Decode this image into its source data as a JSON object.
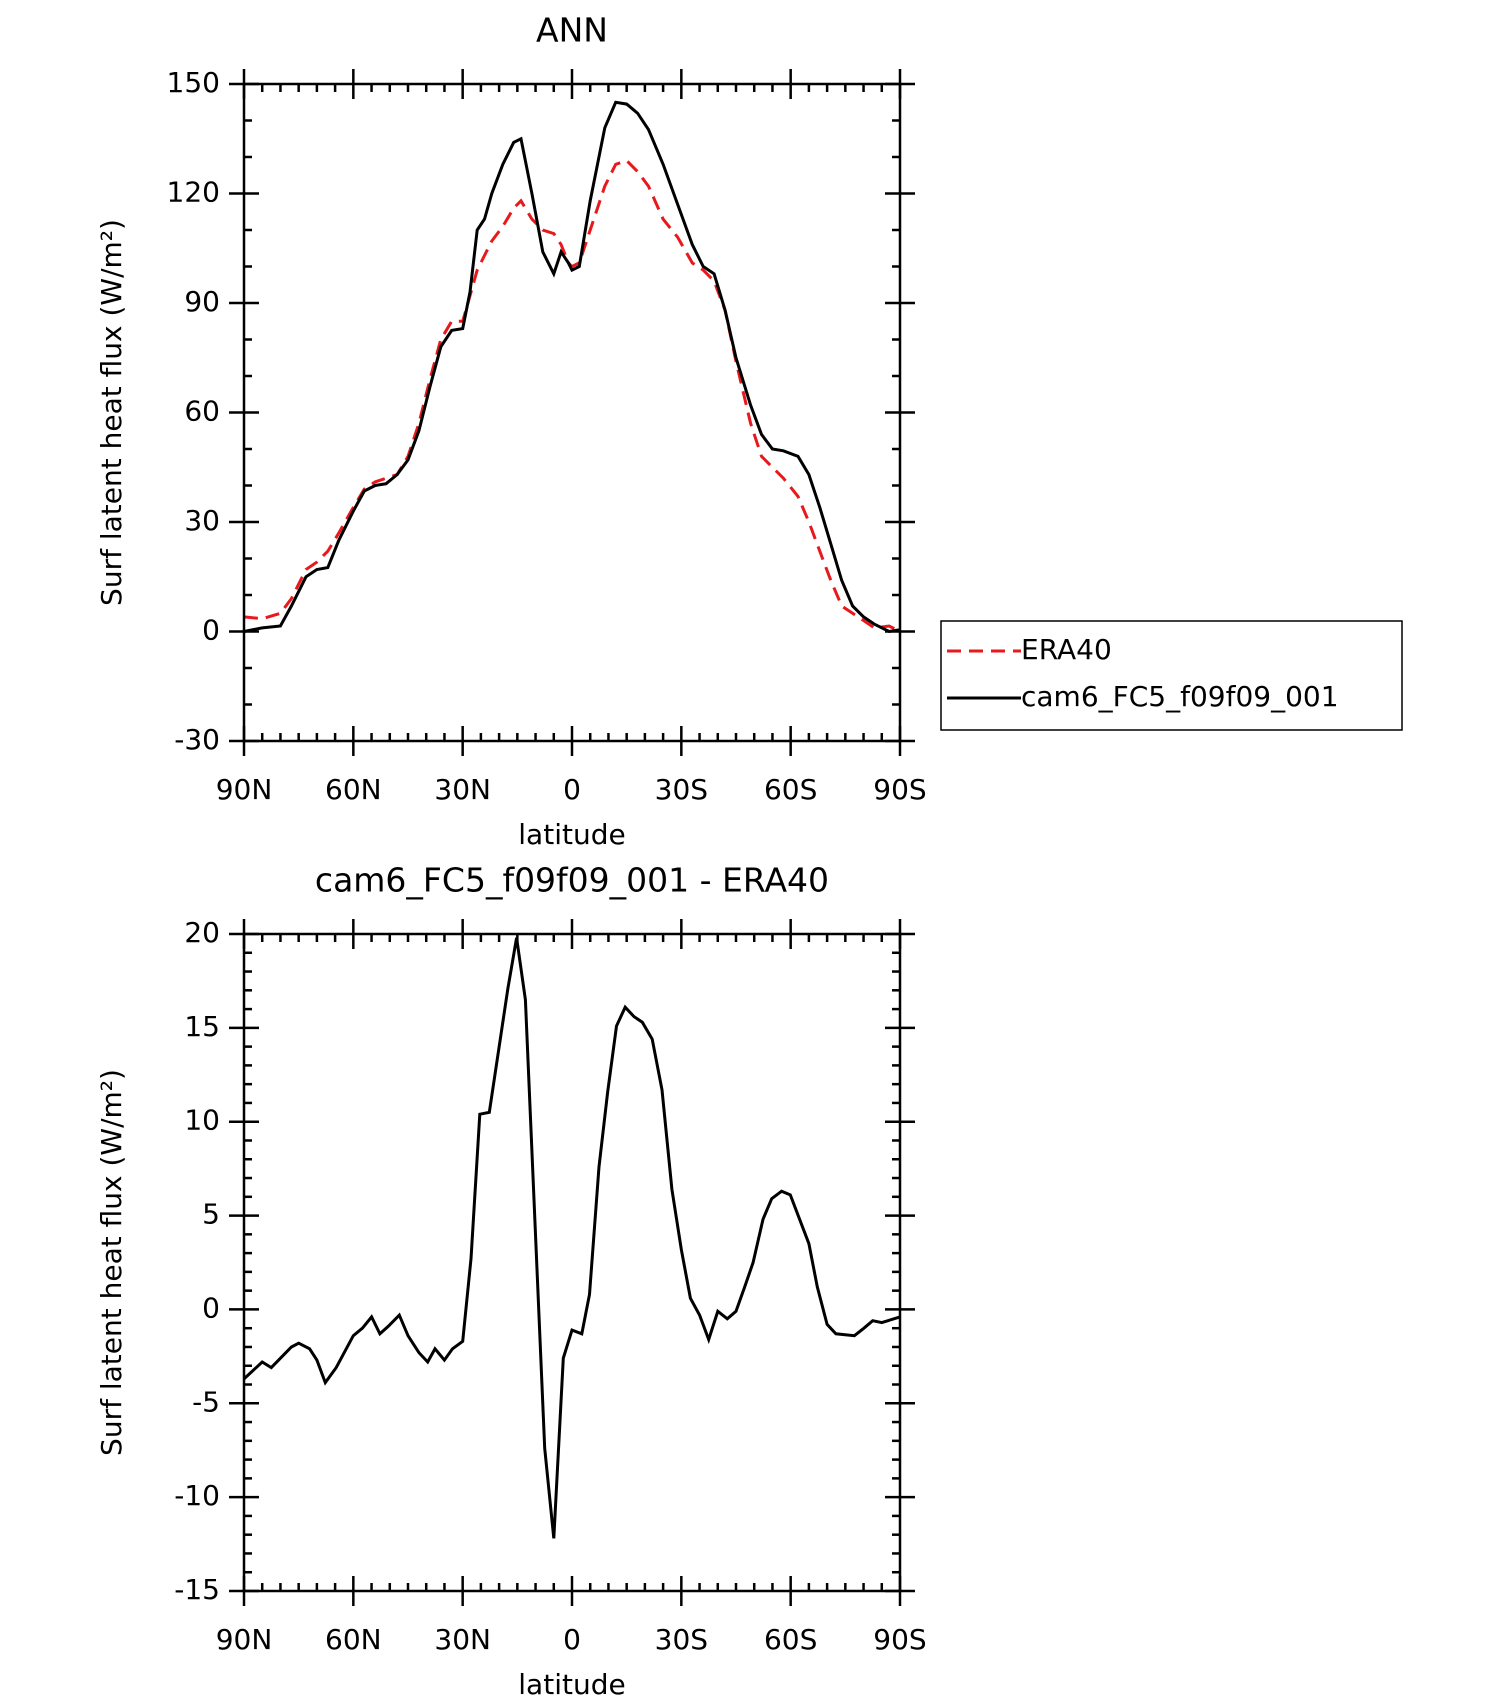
{
  "chart_data": [
    {
      "type": "line",
      "title": "ANN",
      "xlabel": "latitude",
      "ylabel": "Surf latent heat flux (W/m²)",
      "xlim": [
        90,
        -90
      ],
      "ylim": [
        -30,
        150
      ],
      "xticks": [
        {
          "value": 90,
          "label": "90N"
        },
        {
          "value": 60,
          "label": "60N"
        },
        {
          "value": 30,
          "label": "30N"
        },
        0,
        {
          "value": -30,
          "label": "30S"
        },
        {
          "value": -60,
          "label": "60S"
        },
        {
          "value": -90,
          "label": "90S"
        }
      ],
      "yticks": [
        -30,
        0,
        30,
        60,
        90,
        120,
        150
      ],
      "legend": "right",
      "x": [
        90,
        85,
        80,
        77,
        73,
        70,
        67,
        64,
        60,
        57,
        54,
        51,
        48,
        45,
        42,
        39,
        36,
        33,
        30,
        28,
        26,
        24,
        22,
        19,
        16,
        14,
        11,
        8,
        5,
        3,
        1,
        0,
        -2,
        -5,
        -9,
        -12,
        -15,
        -18,
        -21,
        -25,
        -29,
        -33,
        -36,
        -39,
        -42,
        -45,
        -49,
        -52,
        -55,
        -58,
        -62,
        -65,
        -68,
        -71,
        -74,
        -77,
        -80,
        -83,
        -87,
        -90
      ],
      "series": [
        {
          "name": "ERA40",
          "color": "#e8191c",
          "linestyle": "dashed",
          "values": [
            4,
            3.5,
            5,
            9,
            17,
            19,
            22,
            27,
            34,
            39,
            41,
            42,
            43,
            48,
            57,
            69,
            80,
            85,
            85,
            92,
            99,
            103,
            107,
            111,
            116,
            118,
            113,
            110,
            109,
            106,
            101,
            100,
            101,
            110,
            122,
            128,
            129,
            126,
            122,
            113,
            108,
            101,
            99,
            96,
            88,
            74,
            57,
            48,
            45,
            42,
            37,
            30,
            22,
            14,
            7,
            5,
            3,
            1,
            1.5,
            0
          ]
        },
        {
          "name": "cam6_FC5_f09f09_001",
          "color": "#000000",
          "linestyle": "solid",
          "values": [
            0,
            1,
            1.5,
            7,
            15,
            17,
            17.5,
            25,
            33,
            38.5,
            40,
            40.5,
            43,
            47,
            55,
            67,
            78,
            82.5,
            83,
            93,
            110,
            113,
            120,
            128,
            134,
            135,
            120,
            104,
            98,
            104,
            101,
            99,
            100,
            118,
            138,
            145,
            144.5,
            142,
            137.5,
            128,
            117,
            106,
            100,
            98,
            88,
            75,
            62,
            54,
            50,
            49.5,
            48,
            43,
            34,
            24,
            14,
            7,
            4,
            2,
            0,
            0.5
          ]
        }
      ]
    },
    {
      "type": "line",
      "title": "cam6_FC5_f09f09_001 - ERA40",
      "xlabel": "latitude",
      "ylabel": "Surf latent heat flux (W/m²)",
      "xlim": [
        90,
        -90
      ],
      "ylim": [
        -15,
        20
      ],
      "xticks": [
        {
          "value": 90,
          "label": "90N"
        },
        {
          "value": 60,
          "label": "60N"
        },
        {
          "value": 30,
          "label": "30N"
        },
        0,
        {
          "value": -30,
          "label": "30S"
        },
        {
          "value": -60,
          "label": "60S"
        },
        {
          "value": -90,
          "label": "90S"
        }
      ],
      "yticks": [
        -15,
        -10,
        -5,
        0,
        5,
        10,
        15,
        20
      ],
      "x": [
        90,
        85,
        82.5,
        77,
        75,
        72,
        70,
        67.7,
        64.7,
        60,
        57.5,
        55,
        52.7,
        50.4,
        47.4,
        45,
        42,
        39.6,
        37.6,
        35,
        32.8,
        30,
        27.7,
        25.3,
        22.7,
        17.6,
        15.2,
        12.8,
        7.5,
        5,
        2.4,
        0,
        -2.7,
        -4.8,
        -7.4,
        -9.8,
        -12.2,
        -14.6,
        -17,
        -19.3,
        -22,
        -24.7,
        -27.4,
        -30,
        -32.5,
        -35,
        -37.5,
        -40,
        -42.6,
        -45,
        -47.4,
        -49.7,
        -52.4,
        -54.8,
        -57.5,
        -59.9,
        -65,
        -67.3,
        -70,
        -72.4,
        -77.5,
        -80.1,
        -82.5,
        -85,
        -90
      ],
      "series": [
        {
          "name": "cam6_FC5_f09f09_001 - ERA40",
          "color": "#000000",
          "linestyle": "solid",
          "values": [
            -3.7,
            -2.8,
            -3.1,
            -2,
            -1.8,
            -2.1,
            -2.7,
            -3.9,
            -3.1,
            -1.4,
            -1,
            -0.4,
            -1.3,
            -0.9,
            -0.3,
            -1.4,
            -2.3,
            -2.8,
            -2.1,
            -2.7,
            -2.1,
            -1.7,
            2.7,
            10.4,
            10.5,
            17.1,
            19.8,
            16.5,
            -7.4,
            -12.2,
            -2.6,
            -1.1,
            -1.3,
            0.8,
            7.6,
            11.6,
            15.1,
            16.1,
            15.6,
            15.3,
            14.4,
            11.7,
            6.4,
            3.2,
            0.6,
            -0.3,
            -1.6,
            -0.1,
            -0.5,
            -0.1,
            1.2,
            2.5,
            4.8,
            5.9,
            6.3,
            6.1,
            3.5,
            1.2,
            -0.8,
            -1.3,
            -1.4,
            -1,
            -0.6,
            -0.7,
            -0.4
          ]
        }
      ]
    }
  ]
}
